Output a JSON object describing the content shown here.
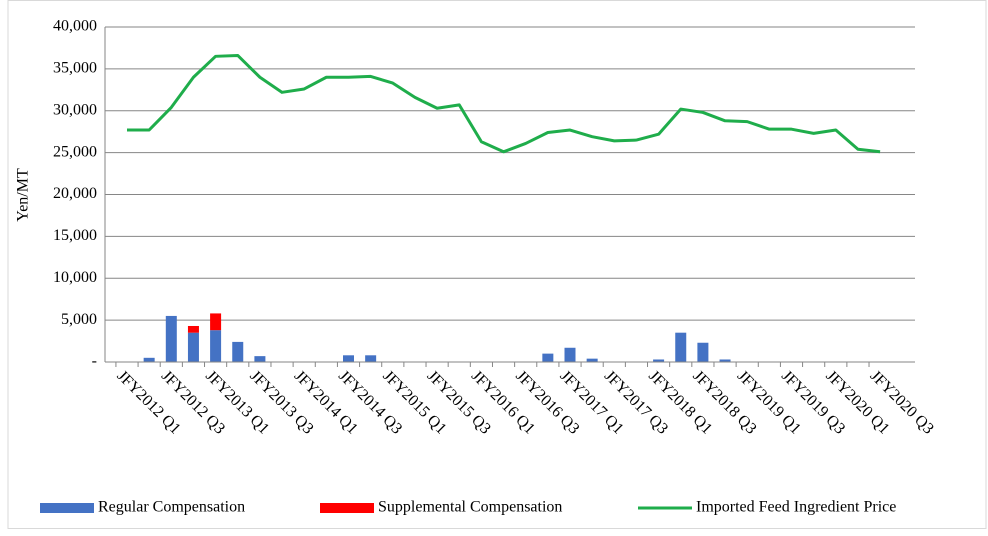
{
  "chart_data": {
    "type": "bar-line",
    "y_label": "Yen/MT",
    "categories": [
      "JFY2012 Q1",
      null,
      "JFY2012 Q3",
      null,
      "JFY2013 Q1",
      null,
      "JFY2013 Q3",
      null,
      "JFY2014 Q1",
      null,
      "JFY2014 Q3",
      null,
      "JFY2015 Q1",
      null,
      "JFY2015 Q3",
      null,
      "JFY2016 Q1",
      null,
      "JFY2016 Q3",
      null,
      "JFY2017 Q1",
      null,
      "JFY2017 Q3",
      null,
      "JFY2018 Q1",
      null,
      "JFY2018 Q3",
      null,
      "JFY2019 Q1",
      null,
      "JFY2019 Q3",
      null,
      "JFY2020 Q1",
      null,
      "JFY2020 Q3"
    ],
    "series": [
      {
        "name": "Regular Compensation",
        "type": "bar",
        "color": "#4472c4",
        "values": [
          0,
          500,
          5500,
          3500,
          3800,
          2400,
          700,
          0,
          0,
          0,
          800,
          800,
          0,
          0,
          0,
          0,
          0,
          0,
          0,
          1000,
          1700,
          400,
          0,
          0,
          300,
          3500,
          2300,
          300,
          0,
          0,
          0,
          0,
          0,
          0,
          0
        ]
      },
      {
        "name": "Supplemental Compensation",
        "type": "bar",
        "color": "#ff0000",
        "values": [
          0,
          0,
          0,
          800,
          2000,
          0,
          0,
          0,
          0,
          0,
          0,
          0,
          0,
          0,
          0,
          0,
          0,
          0,
          0,
          0,
          0,
          0,
          0,
          0,
          0,
          0,
          0,
          0,
          0,
          0,
          0,
          0,
          0,
          0,
          0
        ]
      },
      {
        "name": "Imported Feed Ingredient Price",
        "type": "line",
        "color": "#1fad4b",
        "values": [
          27700,
          27700,
          30400,
          34000,
          36500,
          36600,
          34000,
          32200,
          32600,
          34000,
          34000,
          34100,
          33300,
          31600,
          30300,
          30700,
          26300,
          25100,
          26100,
          27400,
          27700,
          26900,
          26400,
          26500,
          27200,
          30200,
          29800,
          28800,
          28700,
          27800,
          27800,
          27300,
          27700,
          25400,
          25100
        ]
      }
    ],
    "ylim": [
      0,
      40000
    ],
    "yticks": [
      {
        "value": 0,
        "label": "-"
      },
      {
        "value": 5000,
        "label": "5,000"
      },
      {
        "value": 10000,
        "label": "10,000"
      },
      {
        "value": 15000,
        "label": "15,000"
      },
      {
        "value": 20000,
        "label": "20,000"
      },
      {
        "value": 25000,
        "label": "25,000"
      },
      {
        "value": 30000,
        "label": "30,000"
      },
      {
        "value": 35000,
        "label": "35,000"
      },
      {
        "value": 40000,
        "label": "40,000"
      }
    ],
    "grid": true,
    "legend": "bottom"
  }
}
